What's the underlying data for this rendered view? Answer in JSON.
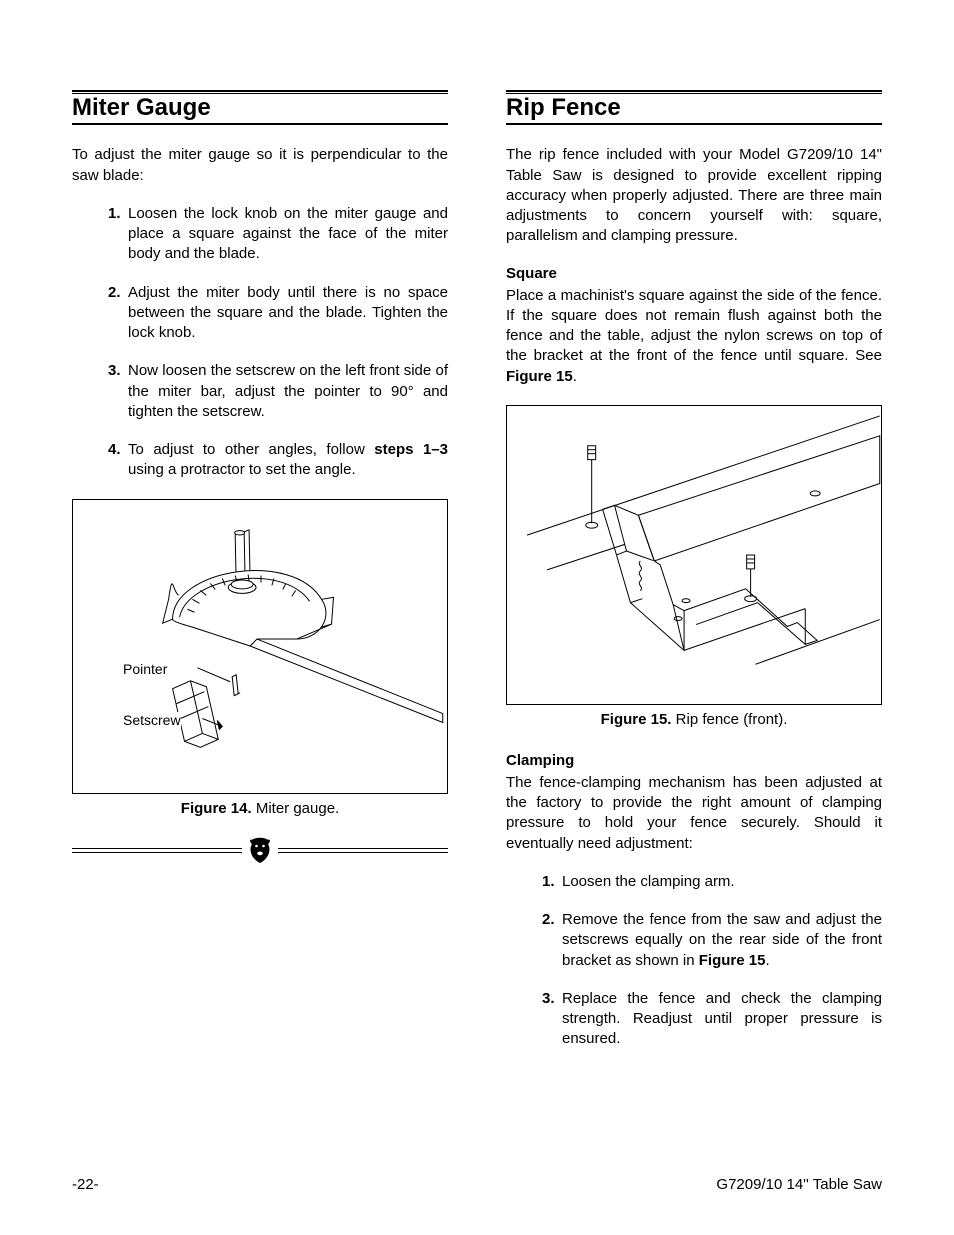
{
  "left": {
    "title": "Miter Gauge",
    "intro": "To adjust the miter gauge so it is perpendicular to the saw blade:",
    "steps": [
      {
        "n": "1.",
        "t": "Loosen the lock knob on the miter gauge and place a square against the face of the miter body and the blade."
      },
      {
        "n": "2.",
        "t": "Adjust the miter body until there is no space between the square and the blade. Tighten the lock knob."
      },
      {
        "n": "3.",
        "t": "Now loosen the setscrew on the left front side of the miter bar, adjust the pointer to 90° and tighten the setscrew."
      }
    ],
    "step4_prefix": "4.",
    "step4_a": "To adjust to other angles, follow ",
    "step4_bold": "steps 1–3",
    "step4_b": " using a protractor to set the angle.",
    "fig_labels": {
      "pointer": "Pointer",
      "setscrew": "Setscrew"
    },
    "fig_caption_bold": "Figure 14.",
    "fig_caption_rest": " Miter gauge."
  },
  "right": {
    "title": "Rip Fence",
    "p1": "The rip fence included with your Model G7209/10 14\" Table Saw is designed to provide excellent ripping accuracy when properly adjusted. There are three main adjustments to concern yourself with: square, parallelism and clamping pressure.",
    "square_heading": "Square",
    "square_p_a": "Place a machinist's square against the side of the fence. If the square does not remain flush against both the fence and the table, adjust the nylon screws on top of the bracket at the front of the fence until square. See ",
    "square_p_bold": "Figure 15",
    "square_p_b": ".",
    "fig_caption_bold": "Figure 15.",
    "fig_caption_rest": " Rip fence (front).",
    "clamp_heading": "Clamping",
    "clamp_p": "The fence-clamping mechanism has been adjusted at the factory to provide the right amount of clamping pressure to hold your fence securely. Should it eventually need adjustment:",
    "clamp_steps": [
      {
        "n": "1.",
        "t": "Loosen the clamping arm."
      }
    ],
    "clamp_step2_n": "2.",
    "clamp_step2_a": "Remove the fence from the saw and adjust the setscrews equally on the rear side of the front bracket as shown in ",
    "clamp_step2_bold": "Figure 15",
    "clamp_step2_b": ".",
    "clamp_step3": {
      "n": "3.",
      "t": "Replace the fence and check the clamping strength. Readjust until proper pressure is ensured."
    }
  },
  "footer": {
    "page": "-22-",
    "doc": "G7209/10 14'' Table Saw"
  }
}
